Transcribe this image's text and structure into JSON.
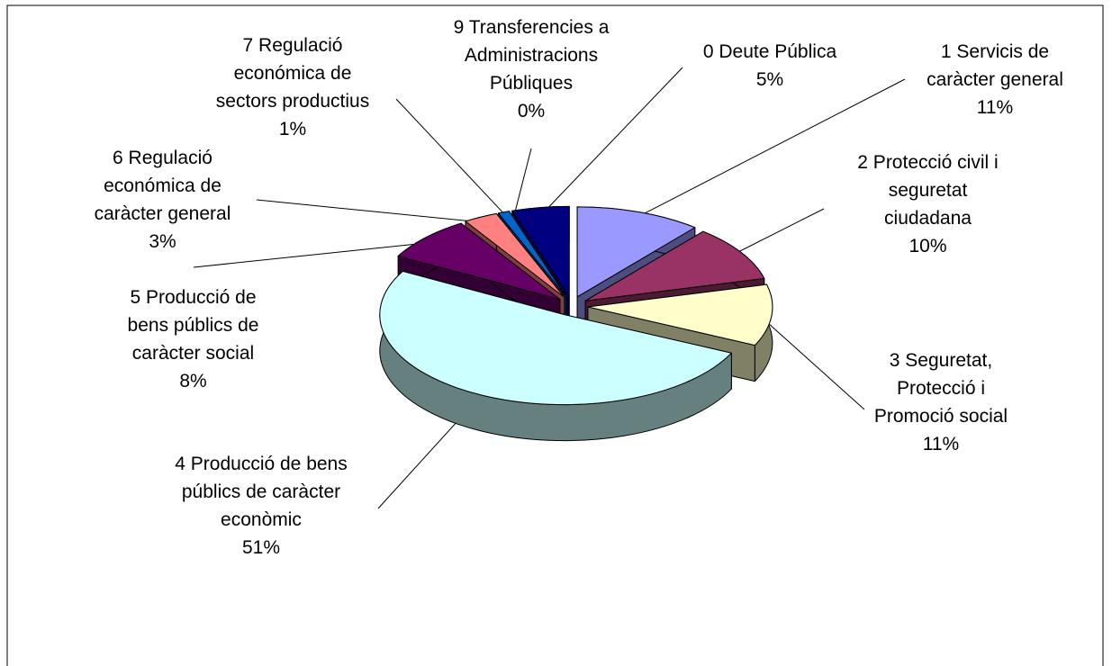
{
  "chart_data": {
    "type": "pie3d",
    "categories": [
      "0 Deute Pública",
      "1 Servicis de caràcter general",
      "2 Protecció civil i seguretat ciudadana",
      "3 Seguretat, Protecció i Promoció social",
      "4 Producció de bens públics de caràcter econòmic",
      "5 Producció de bens públics de caràcter social",
      "6 Regulació económica de caràcter general",
      "7 Regulació económica de sectors productius",
      "9 Transferencies a Administracions Públiques"
    ],
    "values": [
      5,
      11,
      10,
      11,
      51,
      8,
      3,
      1,
      0
    ],
    "value_labels": [
      "5%",
      "11%",
      "10%",
      "11%",
      "51%",
      "8%",
      "3%",
      "1%",
      "0%"
    ],
    "colors": [
      "#000080",
      "#9999ff",
      "#993366",
      "#ffffcc",
      "#ccffff",
      "#660066",
      "#ff8080",
      "#0066cc",
      "#ccccff"
    ]
  }
}
